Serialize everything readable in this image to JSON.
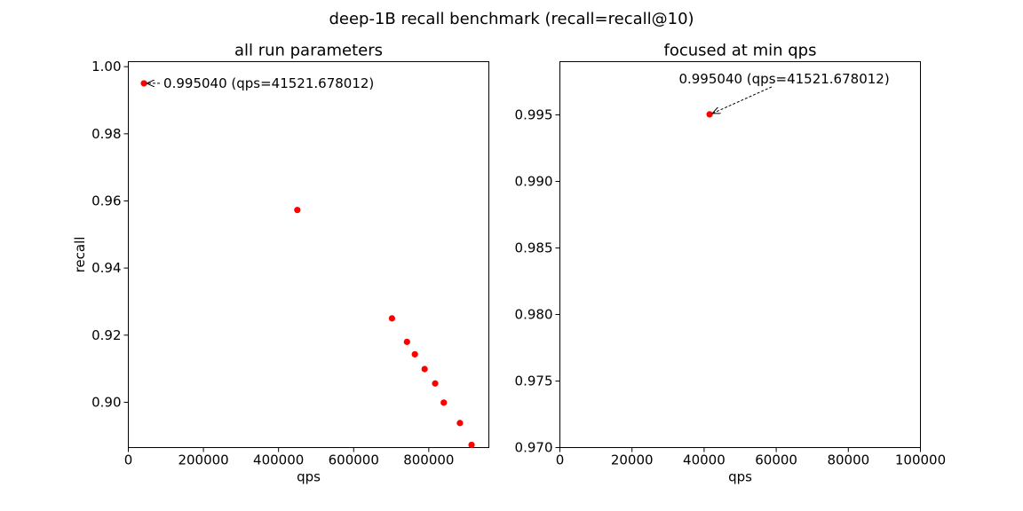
{
  "figure": {
    "title": "deep-1B recall benchmark (recall=recall@10)"
  },
  "chart_data": [
    {
      "type": "scatter",
      "title": "all run parameters",
      "xlabel": "qps",
      "ylabel": "recall",
      "xlim": [
        0,
        960000
      ],
      "ylim": [
        0.8865,
        1.0015
      ],
      "xticks": [
        "0",
        "200000",
        "400000",
        "600000",
        "800000"
      ],
      "xtick_values": [
        0,
        200000,
        400000,
        600000,
        800000
      ],
      "yticks": [
        "0.90",
        "0.92",
        "0.94",
        "0.96",
        "0.98",
        "1.00"
      ],
      "ytick_values": [
        0.9,
        0.92,
        0.94,
        0.96,
        0.98,
        1.0
      ],
      "marker_color": "#ff0000",
      "x": [
        41521.678012,
        450000,
        702000,
        742000,
        763000,
        789000,
        817000,
        840000,
        883000,
        914000
      ],
      "y": [
        0.99504,
        0.9573,
        0.925,
        0.918,
        0.9143,
        0.9099,
        0.9056,
        0.8999,
        0.8938,
        0.8873
      ],
      "annotation": {
        "text": "0.995040 (qps=41521.678012)",
        "x": 41521.678012,
        "y": 0.99504
      }
    },
    {
      "type": "scatter",
      "title": "focused at min qps",
      "xlabel": "qps",
      "ylabel": "",
      "xlim": [
        0,
        100000
      ],
      "ylim": [
        0.97,
        0.999
      ],
      "xticks": [
        "0",
        "20000",
        "40000",
        "60000",
        "80000",
        "100000"
      ],
      "xtick_values": [
        0,
        20000,
        40000,
        60000,
        80000,
        100000
      ],
      "yticks": [
        "0.970",
        "0.975",
        "0.980",
        "0.985",
        "0.990",
        "0.995"
      ],
      "ytick_values": [
        0.97,
        0.975,
        0.98,
        0.985,
        0.99,
        0.995
      ],
      "marker_color": "#ff0000",
      "x": [
        41521.678012
      ],
      "y": [
        0.99504
      ],
      "annotation": {
        "text": "0.995040 (qps=41521.678012)",
        "x": 41521.678012,
        "y": 0.99504
      }
    }
  ]
}
